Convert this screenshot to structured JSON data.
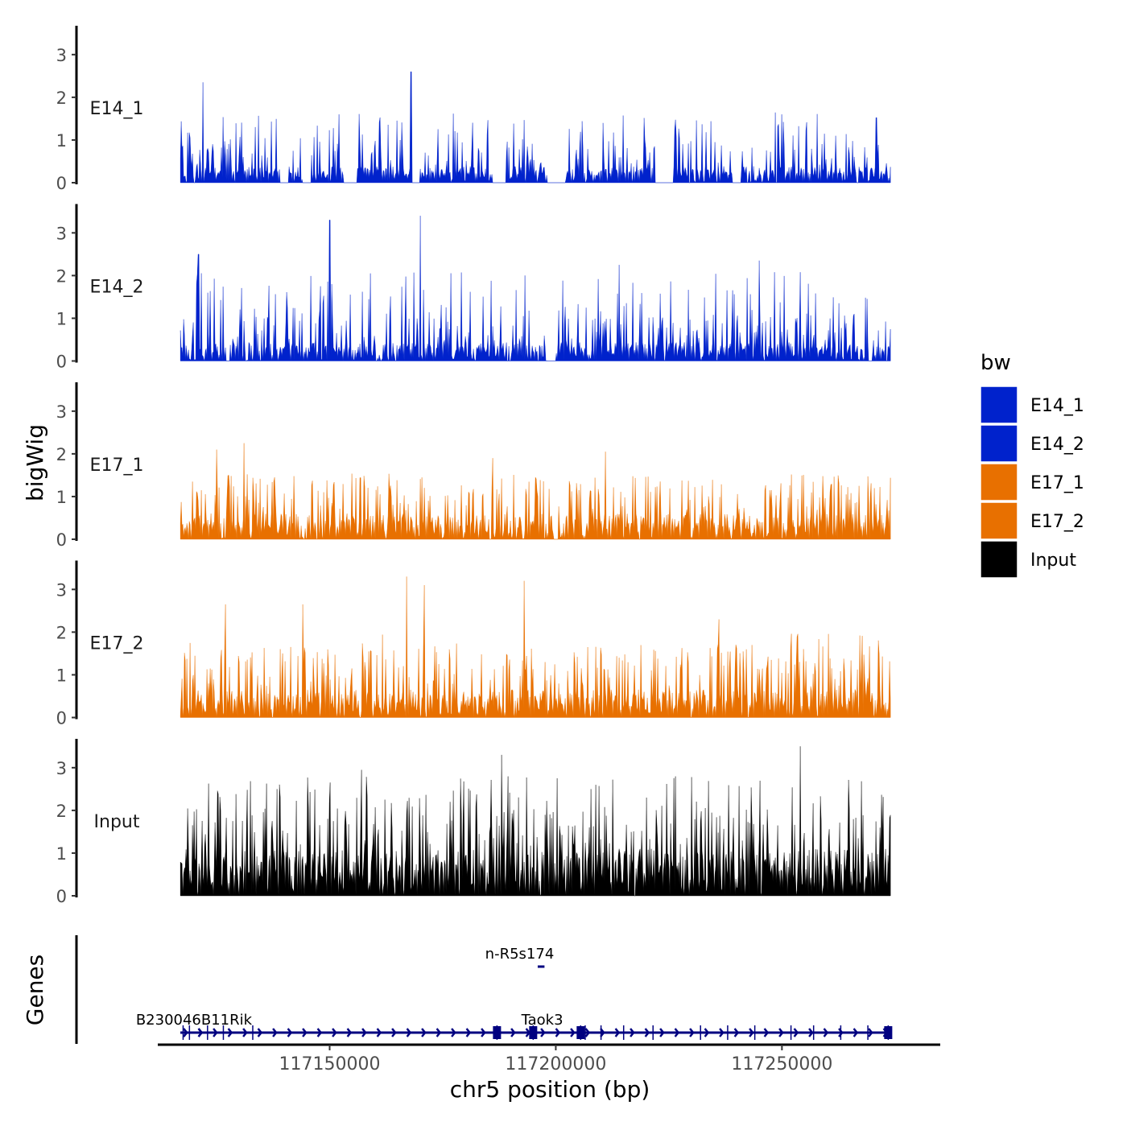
{
  "chart_data": {
    "type": "area",
    "ylabel": "bigWig",
    "xlabel": "chr5 position (bp)",
    "xlim": [
      117112000,
      117285000
    ],
    "xticks": [
      117150000,
      117200000,
      117250000
    ],
    "xtick_labels": [
      "117150000",
      "117200000",
      "117250000"
    ],
    "ylim": [
      0,
      3.6
    ],
    "yticks": [
      0,
      1,
      2,
      3
    ],
    "ytick_labels": [
      "0",
      "1",
      "2",
      "3"
    ],
    "region": [
      117117000,
      117274000
    ],
    "legend": {
      "title": "bw",
      "position": "right",
      "entries": [
        {
          "label": "E14_1",
          "color": "#0022CC"
        },
        {
          "label": "E14_2",
          "color": "#0022CC"
        },
        {
          "label": "E17_1",
          "color": "#E87000"
        },
        {
          "label": "E17_2",
          "color": "#E87000"
        },
        {
          "label": "Input",
          "color": "#000000"
        }
      ]
    },
    "series": [
      {
        "name": "E14_1",
        "color": "#0022CC",
        "base": 0.35,
        "spike": 1.5,
        "peak": 2.6,
        "seed": 11,
        "peaks": [
          [
            117122000,
            2.35
          ],
          [
            117168000,
            2.6
          ],
          [
            117152000,
            1.6
          ],
          [
            117250000,
            1.6
          ]
        ],
        "gaps": [
          [
            117139000,
            117141000
          ],
          [
            117144000,
            117146000
          ],
          [
            117153000,
            117156000
          ],
          [
            117168000,
            117170000
          ],
          [
            117186000,
            117189000
          ],
          [
            117198000,
            117202000
          ],
          [
            117222000,
            117226000
          ],
          [
            117239000,
            117241000
          ]
        ]
      },
      {
        "name": "E14_2",
        "color": "#0022CC",
        "base": 0.4,
        "spike": 1.9,
        "peak": 3.3,
        "seed": 23,
        "peaks": [
          [
            117150000,
            3.3
          ],
          [
            117170000,
            3.4
          ],
          [
            117121000,
            2.5
          ],
          [
            117159000,
            2.05
          ],
          [
            117214000,
            2.25
          ],
          [
            117245000,
            2.35
          ]
        ],
        "gaps": [
          [
            117127000,
            117128000
          ],
          [
            117198000,
            117200000
          ],
          [
            117269000,
            117270000
          ]
        ]
      },
      {
        "name": "E17_1",
        "color": "#E87000",
        "base": 0.55,
        "spike": 1.4,
        "peak": 2.2,
        "seed": 37,
        "peaks": [
          [
            117131000,
            2.25
          ],
          [
            117125000,
            2.1
          ],
          [
            117211000,
            2.05
          ],
          [
            117186000,
            1.9
          ]
        ],
        "gaps": [
          [
            117199500,
            117200500
          ]
        ]
      },
      {
        "name": "E17_2",
        "color": "#E87000",
        "base": 0.6,
        "spike": 1.8,
        "peak": 3.3,
        "seed": 53,
        "peaks": [
          [
            117167000,
            3.3
          ],
          [
            117193000,
            3.2
          ],
          [
            117171000,
            3.1
          ],
          [
            117127000,
            2.65
          ],
          [
            117144000,
            2.65
          ],
          [
            117236000,
            2.3
          ]
        ],
        "gaps": []
      },
      {
        "name": "Input",
        "color": "#000000",
        "base": 1.0,
        "spike": 1.9,
        "peak": 3.5,
        "seed": 71,
        "peaks": [
          [
            117254000,
            3.5
          ],
          [
            117188000,
            3.3
          ],
          [
            117157000,
            2.95
          ],
          [
            117220000,
            2.3
          ]
        ],
        "gaps": []
      }
    ],
    "genes": {
      "label": "Genes",
      "items": [
        {
          "name": "n-R5s174",
          "start": 117196000,
          "end": 117197500,
          "strand": "+",
          "row": 0,
          "exons": [],
          "label_anchor": 117192000
        },
        {
          "name": "B230046B11Rik",
          "start": 117117000,
          "end": 117123000,
          "strand": "+",
          "row": 1,
          "exons": [],
          "label_anchor": 117120000
        },
        {
          "name": "Taok3",
          "start": 117117000,
          "end": 117274000,
          "strand": "+",
          "row": 1,
          "exons": [
            117117600,
            117119000,
            117123000,
            117126500,
            117133000,
            117187000,
            117195000,
            117205500,
            117206500,
            117210000,
            117215000,
            117221500,
            117232000,
            117238000,
            117244000,
            117252000,
            117257000,
            117263000,
            117269000,
            117273500
          ],
          "big_exons": [
            117187000,
            117195000,
            117205500,
            117273500
          ],
          "label_anchor": 117197000
        }
      ]
    }
  }
}
